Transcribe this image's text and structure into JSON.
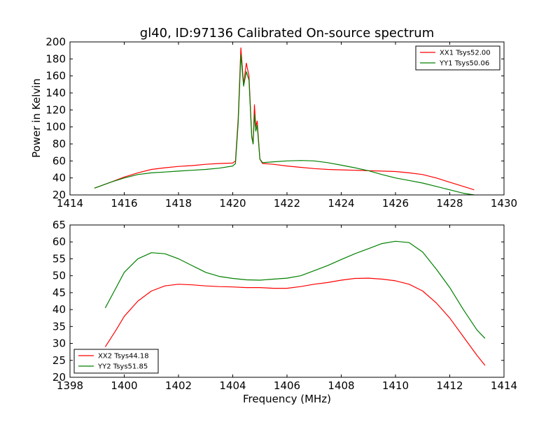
{
  "chart_data": [
    {
      "type": "line",
      "title": "gl40, ID:97136 Calibrated On-source spectrum",
      "xlabel": "",
      "ylabel": "Power in Kelvin",
      "xlim": [
        1414,
        1430
      ],
      "ylim": [
        20,
        200
      ],
      "xticks": [
        "1414",
        "1416",
        "1418",
        "1420",
        "1422",
        "1424",
        "1426",
        "1428",
        "1430"
      ],
      "yticks": [
        "20",
        "40",
        "60",
        "80",
        "100",
        "120",
        "140",
        "160",
        "180",
        "200"
      ],
      "legend_position": "top-right",
      "grid": false,
      "series": [
        {
          "name": "XX1 Tsys52.00",
          "color": "#ff0000",
          "x": [
            1414.9,
            1415.5,
            1416.0,
            1416.5,
            1417.0,
            1417.5,
            1418.0,
            1418.5,
            1419.0,
            1419.5,
            1420.0,
            1420.1,
            1420.2,
            1420.3,
            1420.4,
            1420.5,
            1420.6,
            1420.7,
            1420.75,
            1420.8,
            1420.85,
            1420.9,
            1421.0,
            1421.1,
            1421.5,
            1422.0,
            1422.5,
            1423.0,
            1423.5,
            1424.0,
            1424.5,
            1425.0,
            1425.5,
            1426.0,
            1426.5,
            1427.0,
            1427.5,
            1428.0,
            1428.5,
            1428.9
          ],
          "y": [
            28,
            35,
            41,
            46,
            50,
            52,
            53.5,
            54.5,
            56,
            57,
            57.5,
            60,
            110,
            193,
            150,
            175,
            160,
            90,
            80,
            126,
            100,
            107,
            62,
            57,
            56,
            54,
            52.5,
            51,
            50,
            49.5,
            49,
            48.5,
            48,
            47.5,
            46,
            44,
            40,
            35,
            30,
            26
          ]
        },
        {
          "name": "YY1 Tsys50.06",
          "color": "#008000",
          "x": [
            1414.9,
            1415.5,
            1416.0,
            1416.5,
            1417.0,
            1417.5,
            1418.0,
            1418.5,
            1419.0,
            1419.5,
            1420.0,
            1420.1,
            1420.2,
            1420.3,
            1420.4,
            1420.5,
            1420.6,
            1420.7,
            1420.75,
            1420.8,
            1420.85,
            1420.9,
            1421.0,
            1421.1,
            1421.5,
            1422.0,
            1422.5,
            1423.0,
            1423.5,
            1424.0,
            1424.5,
            1425.0,
            1425.5,
            1426.0,
            1426.5,
            1427.0,
            1427.5,
            1428.0,
            1428.5,
            1428.9
          ],
          "y": [
            28,
            35,
            40,
            44,
            46,
            47,
            48,
            49,
            50,
            51.5,
            54,
            57,
            105,
            185,
            148,
            165,
            155,
            88,
            80,
            115,
            95,
            102,
            62,
            58,
            59,
            60,
            60.5,
            60,
            58,
            55,
            52,
            48.5,
            44,
            40,
            37,
            34,
            30,
            26,
            22,
            20
          ]
        }
      ]
    },
    {
      "type": "line",
      "title": "",
      "xlabel": "Frequency (MHz)",
      "ylabel": "",
      "xlim": [
        1398,
        1414
      ],
      "ylim": [
        20,
        65
      ],
      "xticks": [
        "1398",
        "1400",
        "1402",
        "1404",
        "1406",
        "1408",
        "1410",
        "1412",
        "1414"
      ],
      "yticks": [
        "20",
        "25",
        "30",
        "35",
        "40",
        "45",
        "50",
        "55",
        "60",
        "65"
      ],
      "legend_position": "bottom-left",
      "grid": false,
      "series": [
        {
          "name": "XX2 Tsys44.18",
          "color": "#ff0000",
          "x": [
            1399.3,
            1399.7,
            1400.0,
            1400.5,
            1401.0,
            1401.5,
            1402.0,
            1402.5,
            1403.0,
            1403.5,
            1404.0,
            1404.5,
            1405.0,
            1405.5,
            1406.0,
            1406.5,
            1407.0,
            1407.5,
            1408.0,
            1408.5,
            1409.0,
            1409.5,
            1410.0,
            1410.5,
            1411.0,
            1411.5,
            1412.0,
            1412.5,
            1413.0,
            1413.3
          ],
          "y": [
            29,
            34,
            38,
            42.5,
            45.5,
            47,
            47.5,
            47.3,
            47,
            46.8,
            46.7,
            46.5,
            46.5,
            46.3,
            46.3,
            46.8,
            47.5,
            48,
            48.7,
            49.2,
            49.3,
            49,
            48.5,
            47.5,
            45.5,
            42,
            37.5,
            32,
            26.5,
            23.5
          ]
        },
        {
          "name": "YY2 Tsys51.85",
          "color": "#008000",
          "x": [
            1399.3,
            1399.7,
            1400.0,
            1400.5,
            1401.0,
            1401.5,
            1402.0,
            1402.5,
            1403.0,
            1403.5,
            1404.0,
            1404.5,
            1405.0,
            1405.5,
            1406.0,
            1406.5,
            1407.0,
            1407.5,
            1408.0,
            1408.5,
            1409.0,
            1409.5,
            1410.0,
            1410.5,
            1411.0,
            1411.5,
            1412.0,
            1412.5,
            1413.0,
            1413.3
          ],
          "y": [
            40.5,
            46.5,
            51,
            55,
            56.8,
            56.5,
            55,
            53,
            51,
            49.8,
            49.2,
            48.8,
            48.7,
            49,
            49.3,
            50,
            51.5,
            53,
            54.8,
            56.5,
            58,
            59.5,
            60.2,
            59.8,
            57,
            52,
            46.5,
            40,
            34,
            31.5
          ]
        }
      ]
    }
  ]
}
